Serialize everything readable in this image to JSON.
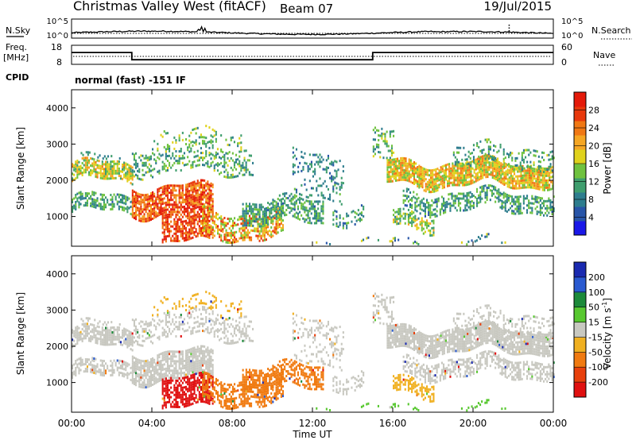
{
  "header": {
    "station": "Christmas Valley West (fitACF)",
    "beam": "Beam 07",
    "date": "19/Jul/2015"
  },
  "strip_labels": {
    "nsky": "N.Sky",
    "nsearch": "N.Search",
    "freq": "Freq.",
    "freq_unit": "[MHz]",
    "nave": "Nave",
    "cpid": "CPID",
    "cpid_value": "normal (fast) -151 IF"
  },
  "chart_data": [
    {
      "type": "line",
      "name": "noise-strip",
      "left_ticks": [
        "10^5",
        "10^0"
      ],
      "right_ticks": [
        "10^5",
        "10^0"
      ]
    },
    {
      "type": "line",
      "name": "frequency-nave-strip",
      "left_ticks": [
        "18",
        "8"
      ],
      "right_ticks": [
        "60",
        "0"
      ],
      "freq_steps": [
        {
          "from_h": 0.0,
          "to_h": 3.0,
          "mhz": 14.2
        },
        {
          "from_h": 3.0,
          "to_h": 15.0,
          "mhz": 10.4
        },
        {
          "from_h": 15.0,
          "to_h": 24.0,
          "mhz": 14.2
        }
      ]
    },
    {
      "type": "heatmap",
      "name": "power-panel",
      "ylabel": "Slant Range [km]",
      "yticks": [
        "1000",
        "2000",
        "3000",
        "4000"
      ],
      "ylim": [
        180,
        4500
      ],
      "xlim": [
        0,
        24
      ],
      "colorbar": {
        "label": "Power [dB]",
        "ticks": [
          "4",
          "8",
          "12",
          "16",
          "20",
          "24",
          "28"
        ],
        "range": [
          0,
          32
        ],
        "colors": [
          "#1a18e8",
          "#2855a8",
          "#2e7d8e",
          "#3f9e6e",
          "#6fc23f",
          "#e0d21c",
          "#f5a623",
          "#f07814",
          "#e8380c",
          "#e41a0a"
        ]
      }
    },
    {
      "type": "heatmap",
      "name": "velocity-panel",
      "ylabel": "Slant Range [km]",
      "yticks": [
        "1000",
        "2000",
        "3000",
        "4000"
      ],
      "ylim": [
        180,
        4500
      ],
      "xlim": [
        0,
        24
      ],
      "xticks": [
        "00:00",
        "04:00",
        "08:00",
        "12:00",
        "16:00",
        "20:00",
        "00:00"
      ],
      "xlabel": "Time UT",
      "colorbar": {
        "label": "Velocity [m s^-1]",
        "ticks": [
          "200",
          "100",
          "50",
          "15",
          "-15",
          "-50",
          "-100",
          "-200"
        ],
        "colors": [
          "#1a2ab0",
          "#2a5ad0",
          "#1c8a3a",
          "#58c830",
          "#c8c8c0",
          "#f0b020",
          "#f07a10",
          "#e8400c",
          "#e01010"
        ]
      }
    }
  ]
}
